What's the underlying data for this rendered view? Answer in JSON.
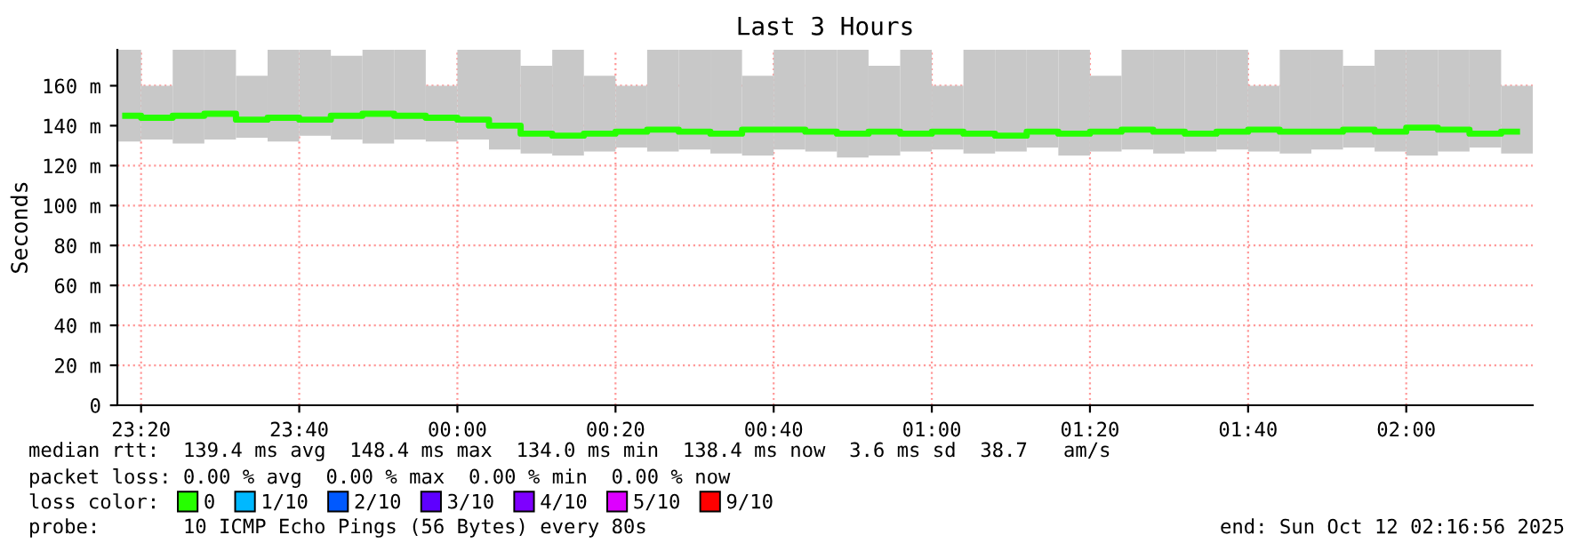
{
  "chart_data": {
    "type": "bar",
    "title": "Last 3 Hours",
    "ylabel": "Seconds",
    "x": [
      "2025-10-11T23:18",
      "2025-10-11T23:22",
      "2025-10-11T23:26",
      "2025-10-11T23:30",
      "2025-10-11T23:34",
      "2025-10-11T23:38",
      "2025-10-11T23:42",
      "2025-10-11T23:46",
      "2025-10-11T23:50",
      "2025-10-11T23:54",
      "2025-10-11T23:58",
      "2025-10-12T00:02",
      "2025-10-12T00:06",
      "2025-10-12T00:10",
      "2025-10-12T00:14",
      "2025-10-12T00:18",
      "2025-10-12T00:22",
      "2025-10-12T00:26",
      "2025-10-12T00:30",
      "2025-10-12T00:34",
      "2025-10-12T00:38",
      "2025-10-12T00:42",
      "2025-10-12T00:46",
      "2025-10-12T00:50",
      "2025-10-12T00:54",
      "2025-10-12T00:58",
      "2025-10-12T01:02",
      "2025-10-12T01:06",
      "2025-10-12T01:10",
      "2025-10-12T01:14",
      "2025-10-12T01:18",
      "2025-10-12T01:22",
      "2025-10-12T01:26",
      "2025-10-12T01:30",
      "2025-10-12T01:34",
      "2025-10-12T01:38",
      "2025-10-12T01:42",
      "2025-10-12T01:46",
      "2025-10-12T01:50",
      "2025-10-12T01:54",
      "2025-10-12T01:58",
      "2025-10-12T02:02",
      "2025-10-12T02:06",
      "2025-10-12T02:10",
      "2025-10-12T02:14"
    ],
    "series": [
      {
        "color": "#c8c8c8",
        "base": [
          132,
          133,
          131,
          133,
          134,
          132,
          135,
          133,
          131,
          133,
          132,
          133,
          128,
          126,
          125,
          127,
          129,
          127,
          128,
          126,
          125,
          128,
          127,
          124,
          125,
          127,
          128,
          126,
          127,
          129,
          125,
          127,
          128,
          126,
          127,
          128,
          127,
          126,
          128,
          129,
          127,
          125,
          127,
          129,
          126
        ],
        "values": [
          46,
          27,
          47,
          45,
          31,
          46,
          43,
          42,
          47,
          45,
          28,
          45,
          50,
          44,
          53,
          38,
          31,
          51,
          50,
          52,
          40,
          50,
          51,
          54,
          45,
          51,
          32,
          52,
          51,
          49,
          53,
          38,
          50,
          52,
          51,
          50,
          33,
          52,
          50,
          41,
          51,
          53,
          51,
          49,
          34
        ]
      },
      {
        "type": "line",
        "name": "0",
        "color": "#26ff00",
        "values": [
          145,
          144,
          145,
          146,
          143,
          144,
          143,
          145,
          146,
          145,
          144,
          143,
          140,
          136,
          135,
          136,
          137,
          138,
          137,
          136,
          138,
          138,
          137,
          136,
          137,
          136,
          137,
          136,
          135,
          137,
          136,
          137,
          138,
          137,
          136,
          137,
          138,
          137,
          137,
          138,
          137,
          139,
          138,
          136,
          137
        ]
      },
      {
        "type": "line",
        "name": "1/10",
        "color": "#00b8ff",
        "values": [
          null,
          null,
          null,
          null,
          null,
          null,
          null,
          null,
          null,
          null,
          null,
          null,
          null,
          null,
          null,
          null,
          null,
          null,
          null,
          null,
          null,
          null,
          null,
          null,
          null,
          null,
          null,
          null,
          null,
          null,
          null,
          null,
          null,
          null,
          null,
          null,
          null,
          null,
          null,
          null,
          null,
          null,
          null,
          null,
          null
        ]
      },
      {
        "type": "line",
        "name": "2/10",
        "color": "#0059ff",
        "values": [
          null,
          null,
          null,
          null,
          null,
          null,
          null,
          null,
          null,
          null,
          null,
          null,
          null,
          null,
          null,
          null,
          null,
          null,
          null,
          null,
          null,
          null,
          null,
          null,
          null,
          null,
          null,
          null,
          null,
          null,
          null,
          null,
          null,
          null,
          null,
          null,
          null,
          null,
          null,
          null,
          null,
          null,
          null,
          null,
          null
        ]
      },
      {
        "type": "line",
        "name": "3/10",
        "color": "#5e00ff",
        "values": [
          null,
          null,
          null,
          null,
          null,
          null,
          null,
          null,
          null,
          null,
          null,
          null,
          null,
          null,
          null,
          null,
          null,
          null,
          null,
          null,
          null,
          null,
          null,
          null,
          null,
          null,
          null,
          null,
          null,
          null,
          null,
          null,
          null,
          null,
          null,
          null,
          null,
          null,
          null,
          null,
          null,
          null,
          null,
          null,
          null
        ]
      },
      {
        "type": "line",
        "name": "4/10",
        "color": "#7e00ff",
        "values": [
          null,
          null,
          null,
          null,
          null,
          null,
          null,
          null,
          null,
          null,
          null,
          null,
          null,
          null,
          null,
          null,
          null,
          null,
          null,
          null,
          null,
          null,
          null,
          null,
          null,
          null,
          null,
          null,
          null,
          null,
          null,
          null,
          null,
          null,
          null,
          null,
          null,
          null,
          null,
          null,
          null,
          null,
          null,
          null,
          null
        ]
      },
      {
        "type": "line",
        "name": "5/10",
        "color": "#dd00ff",
        "values": [
          null,
          null,
          null,
          null,
          null,
          null,
          null,
          null,
          null,
          null,
          null,
          null,
          null,
          null,
          null,
          null,
          null,
          null,
          null,
          null,
          null,
          null,
          null,
          null,
          null,
          null,
          null,
          null,
          null,
          null,
          null,
          null,
          null,
          null,
          null,
          null,
          null,
          null,
          null,
          null,
          null,
          null,
          null,
          null,
          null
        ]
      },
      {
        "type": "line",
        "name": "9/10",
        "color": "#ff0000",
        "values": [
          null,
          null,
          null,
          null,
          null,
          null,
          null,
          null,
          null,
          null,
          null,
          null,
          null,
          null,
          null,
          null,
          null,
          null,
          null,
          null,
          null,
          null,
          null,
          null,
          null,
          null,
          null,
          null,
          null,
          null,
          null,
          null,
          null,
          null,
          null,
          null,
          null,
          null,
          null,
          null,
          null,
          null,
          null,
          null,
          null
        ]
      }
    ],
    "xlim": [
      "2025-10-11T23:17",
      "2025-10-12T02:16"
    ],
    "xticks": [
      {
        "value": "2025-10-11T23:20",
        "label": "23:20"
      },
      {
        "value": "2025-10-11T23:40",
        "label": "23:40"
      },
      {
        "value": "2025-10-12T00:00",
        "label": "00:00"
      },
      {
        "value": "2025-10-12T00:20",
        "label": "00:20"
      },
      {
        "value": "2025-10-12T00:40",
        "label": "00:40"
      },
      {
        "value": "2025-10-12T01:00",
        "label": "01:00"
      },
      {
        "value": "2025-10-12T01:20",
        "label": "01:20"
      },
      {
        "value": "2025-10-12T01:40",
        "label": "01:40"
      },
      {
        "value": "2025-10-12T02:00",
        "label": "02:00"
      }
    ],
    "ylim": [
      0,
      178
    ],
    "yticks": [
      0,
      {
        "value": 20,
        "label": "20 m"
      },
      {
        "value": 40,
        "label": "40 m"
      },
      {
        "value": 60,
        "label": "60 m"
      },
      {
        "value": 80,
        "label": "80 m"
      },
      {
        "value": 100,
        "label": "100 m"
      },
      {
        "value": 120,
        "label": "120 m"
      },
      {
        "value": 140,
        "label": "140 m"
      },
      {
        "value": 160,
        "label": "160 m"
      }
    ],
    "grid": true,
    "legend": "bottom",
    "annotations": [
      "median rtt:  139.4 ms avg  148.4 ms max  134.0 ms min  138.4 ms now  3.6 ms sd  38.7   am/s",
      "packet loss: 0.00 % avg  0.00 % max  0.00 % min  0.00 % now",
      "loss color:",
      "probe:       10 ICMP Echo Pings (56 Bytes) every 80s",
      "end: Sun Oct 12 02:16:56 2025"
    ]
  }
}
